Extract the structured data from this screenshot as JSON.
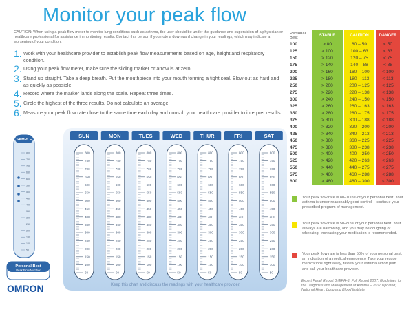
{
  "title": "Monitor your peak flow",
  "caution": "CAUTION: When using a peak flow meter to monitor lung conditions such as asthma, the user should be under the guidance and supervision of a physician or healthcare professional for assistance in monitoring results. Contact this person if you note a downward change in your readings, which may indicate a worsening of your condition.",
  "steps": [
    {
      "number": "1.",
      "text": "Work with your healthcare provider to establish peak flow measurements based on age, height and respiratory condition."
    },
    {
      "number": "2.",
      "text": "Using your peak flow meter, make sure the sliding marker or arrow is at zero."
    },
    {
      "number": "3.",
      "text": "Stand up straight. Take a deep breath. Put the mouthpiece into your mouth forming a tight seal. Blow out as hard and as quickly as possible."
    },
    {
      "number": "4.",
      "text": "Record where the marker lands along the scale. Repeat three times."
    },
    {
      "number": "5.",
      "text": "Circle the highest of the three results. Do not calculate an average."
    },
    {
      "number": "6.",
      "text": "Measure your peak flow rate close to the same time each day and consult your healthcare provider to interpret results."
    }
  ],
  "sample_label": "SAMPLE",
  "meter_scale": [
    800,
    750,
    700,
    650,
    600,
    550,
    500,
    450,
    400,
    350,
    300,
    250,
    200,
    150,
    100,
    50
  ],
  "days": [
    "SUN",
    "MON",
    "TUES",
    "WED",
    "THUR",
    "FRI",
    "SAT"
  ],
  "personal_best_box": {
    "title": "Personal Best",
    "subtitle": "Peak Flow Number"
  },
  "logo": "OMRON",
  "footer": "Keep this chart and discuss the readings with your healthcare provider.",
  "zone_table": {
    "headers": [
      "Personal Best",
      "STABLE",
      "CAUTION",
      "DANGER"
    ],
    "rows": [
      [
        100,
        "> 80",
        "80 – 50",
        "< 50"
      ],
      [
        125,
        "> 100",
        "100 – 63",
        "< 63"
      ],
      [
        150,
        "> 120",
        "120 – 75",
        "< 75"
      ],
      [
        175,
        "> 140",
        "140 – 88",
        "< 88"
      ],
      [
        200,
        "> 160",
        "160 – 100",
        "< 100"
      ],
      [
        225,
        "> 180",
        "180 – 113",
        "< 113"
      ],
      [
        250,
        "> 200",
        "200 – 125",
        "< 125"
      ],
      [
        275,
        "> 220",
        "220 – 138",
        "< 138"
      ],
      [
        300,
        "> 240",
        "240 – 150",
        "< 150"
      ],
      [
        325,
        "> 260",
        "260 – 163",
        "< 163"
      ],
      [
        350,
        "> 280",
        "280 – 175",
        "< 175"
      ],
      [
        375,
        "> 300",
        "300 – 188",
        "< 188"
      ],
      [
        400,
        "> 320",
        "320 – 200",
        "< 200"
      ],
      [
        425,
        "> 340",
        "340 – 213",
        "< 213"
      ],
      [
        450,
        "> 360",
        "360 – 225",
        "< 225"
      ],
      [
        475,
        "> 380",
        "380 – 238",
        "< 238"
      ],
      [
        500,
        "> 400",
        "400 – 250",
        "< 250"
      ],
      [
        525,
        "> 420",
        "420 – 263",
        "< 263"
      ],
      [
        550,
        "> 440",
        "440 – 275",
        "< 275"
      ],
      [
        575,
        "> 460",
        "460 – 288",
        "< 288"
      ],
      [
        600,
        "> 480",
        "480 – 300",
        "< 300"
      ]
    ]
  },
  "legend": [
    {
      "text": "Your peak flow rate is 80–100% of your personal best. Your asthma is under reasonably good control – continue your prescribed program of management."
    },
    {
      "text": "Your peak flow rate is 50–80% of your personal best. Your airways are narrowing, and you may be coughing or wheezing. Increasing your medication is recommended."
    },
    {
      "text": "Your peak flow rate is less than 50% of your personal best, an indication of a medical emergency. Take your rescue medications right away, review your asthma action plan and call your healthcare provider."
    }
  ],
  "source": "Expert Panel Report 3 (EPR-3) Full Report 2007: Guidelines for the Diagnosis and Management of Asthma – 2007 Updated, National Heart, Lung and Blood Institute"
}
